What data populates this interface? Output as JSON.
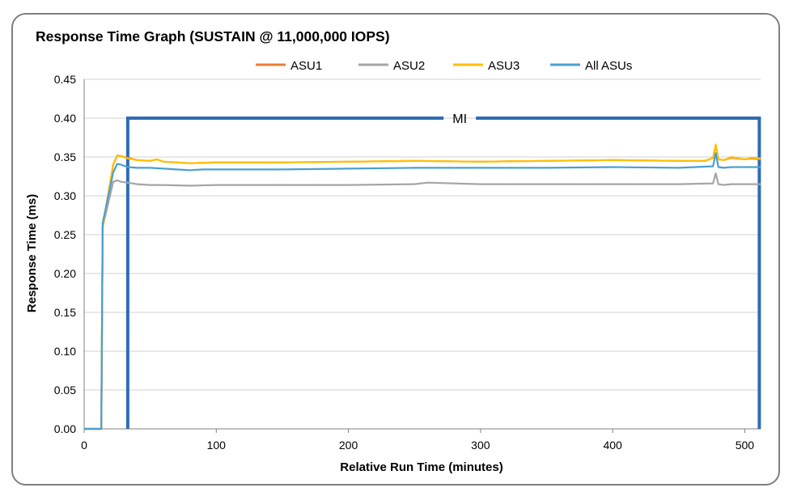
{
  "chart_data": {
    "type": "line",
    "title": "Response Time Graph (SUSTAIN @ 11,000,000 IOPS)",
    "xlabel": "Relative Run Time (minutes)",
    "ylabel": "Response Time (ms)",
    "xlim": [
      0,
      512
    ],
    "ylim": [
      0,
      0.45
    ],
    "x_ticks": [
      "0",
      "100",
      "200",
      "300",
      "400",
      "500"
    ],
    "x_tick_values": [
      0,
      100,
      200,
      300,
      400,
      500
    ],
    "y_ticks": [
      "0.00",
      "0.05",
      "0.10",
      "0.15",
      "0.20",
      "0.25",
      "0.30",
      "0.35",
      "0.40",
      "0.45"
    ],
    "y_tick_values": [
      0,
      0.05,
      0.1,
      0.15,
      0.2,
      0.25,
      0.3,
      0.35,
      0.4,
      0.45
    ],
    "grid": "horizontal",
    "legend_position": "top",
    "annotation": {
      "label": "MI",
      "start": 33,
      "end": 511,
      "level": 0.4,
      "color": "#2e6db4"
    },
    "series": [
      {
        "name": "ASU1",
        "color": "#ed7d31",
        "x": [
          0,
          13,
          14,
          22,
          25,
          28,
          33,
          40,
          50,
          55,
          60,
          70,
          80,
          100,
          150,
          200,
          250,
          300,
          350,
          400,
          450,
          470,
          476,
          478,
          480,
          484,
          490,
          500,
          505,
          512
        ],
        "y": [
          0,
          0,
          0.26,
          0.34,
          0.352,
          0.351,
          0.349,
          0.346,
          0.345,
          0.347,
          0.344,
          0.343,
          0.342,
          0.343,
          0.343,
          0.344,
          0.345,
          0.344,
          0.345,
          0.346,
          0.345,
          0.345,
          0.349,
          0.365,
          0.347,
          0.346,
          0.349,
          0.347,
          0.348,
          0.347
        ]
      },
      {
        "name": "ASU2",
        "color": "#a5a5a5",
        "x": [
          0,
          13,
          14,
          22,
          25,
          28,
          33,
          40,
          50,
          60,
          80,
          100,
          150,
          200,
          250,
          260,
          300,
          350,
          400,
          450,
          476,
          478,
          480,
          484,
          490,
          500,
          512
        ],
        "y": [
          0,
          0,
          0.26,
          0.318,
          0.32,
          0.318,
          0.317,
          0.315,
          0.314,
          0.314,
          0.313,
          0.314,
          0.314,
          0.314,
          0.315,
          0.317,
          0.315,
          0.315,
          0.315,
          0.315,
          0.316,
          0.329,
          0.315,
          0.314,
          0.315,
          0.315,
          0.315
        ]
      },
      {
        "name": "ASU3",
        "color": "#ffc000",
        "x": [
          0,
          13,
          14,
          22,
          25,
          28,
          33,
          40,
          50,
          55,
          60,
          70,
          80,
          100,
          150,
          200,
          250,
          300,
          350,
          400,
          450,
          470,
          476,
          478,
          480,
          484,
          490,
          500,
          505,
          512
        ],
        "y": [
          0,
          0,
          0.26,
          0.34,
          0.352,
          0.351,
          0.348,
          0.346,
          0.345,
          0.347,
          0.344,
          0.343,
          0.342,
          0.343,
          0.343,
          0.344,
          0.345,
          0.344,
          0.345,
          0.346,
          0.345,
          0.345,
          0.349,
          0.366,
          0.347,
          0.346,
          0.35,
          0.347,
          0.349,
          0.348
        ]
      },
      {
        "name": "All ASUs",
        "color": "#4a9fd0",
        "x": [
          0,
          13,
          14,
          22,
          25,
          28,
          33,
          40,
          50,
          60,
          70,
          80,
          90,
          100,
          150,
          200,
          250,
          300,
          350,
          400,
          450,
          476,
          478,
          480,
          484,
          490,
          500,
          512
        ],
        "y": [
          0,
          0,
          0.265,
          0.33,
          0.341,
          0.34,
          0.337,
          0.336,
          0.336,
          0.335,
          0.334,
          0.333,
          0.334,
          0.334,
          0.334,
          0.335,
          0.336,
          0.336,
          0.336,
          0.337,
          0.336,
          0.338,
          0.355,
          0.337,
          0.336,
          0.337,
          0.337,
          0.337
        ]
      }
    ]
  }
}
